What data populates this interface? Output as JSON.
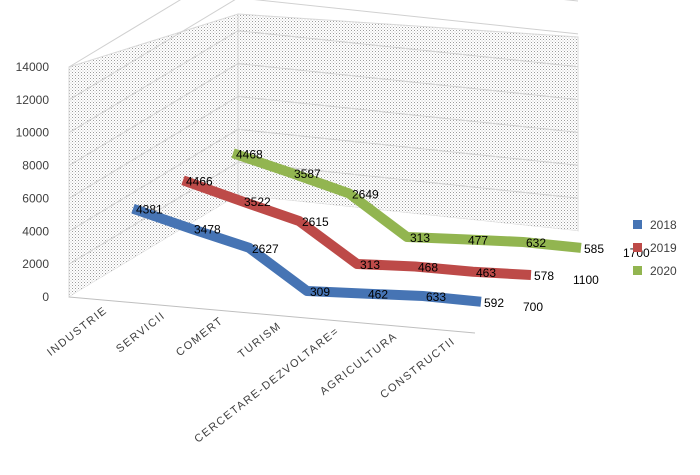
{
  "chart_data": {
    "type": "line",
    "style": "3d",
    "categories": [
      "INDUSTRIE",
      "SERVICII",
      "COMERT",
      "TURISM",
      "CERCETARE-DEZVOLTARE=",
      "AGRICULTURA",
      "CONSTRUCTII"
    ],
    "series": [
      {
        "name": "2018",
        "color": "#4674B4",
        "values": [
          4381,
          3478,
          2627,
          309,
          462,
          633,
          592
        ],
        "end_label": "700"
      },
      {
        "name": "2019",
        "color": "#BD4A48",
        "values": [
          4466,
          3522,
          2615,
          313,
          468,
          463,
          578
        ],
        "end_label": "1100"
      },
      {
        "name": "2020",
        "color": "#92B550",
        "values": [
          4468,
          3587,
          2649,
          313,
          477,
          632,
          585
        ],
        "end_label": "1700"
      }
    ],
    "y_ticks": [
      "0",
      "2000",
      "4000",
      "6000",
      "8000",
      "10000",
      "12000",
      "14000"
    ],
    "ylim": [
      0,
      14000
    ],
    "grid": true,
    "legend_position": "right",
    "title": "",
    "xlabel": "",
    "ylabel": ""
  }
}
